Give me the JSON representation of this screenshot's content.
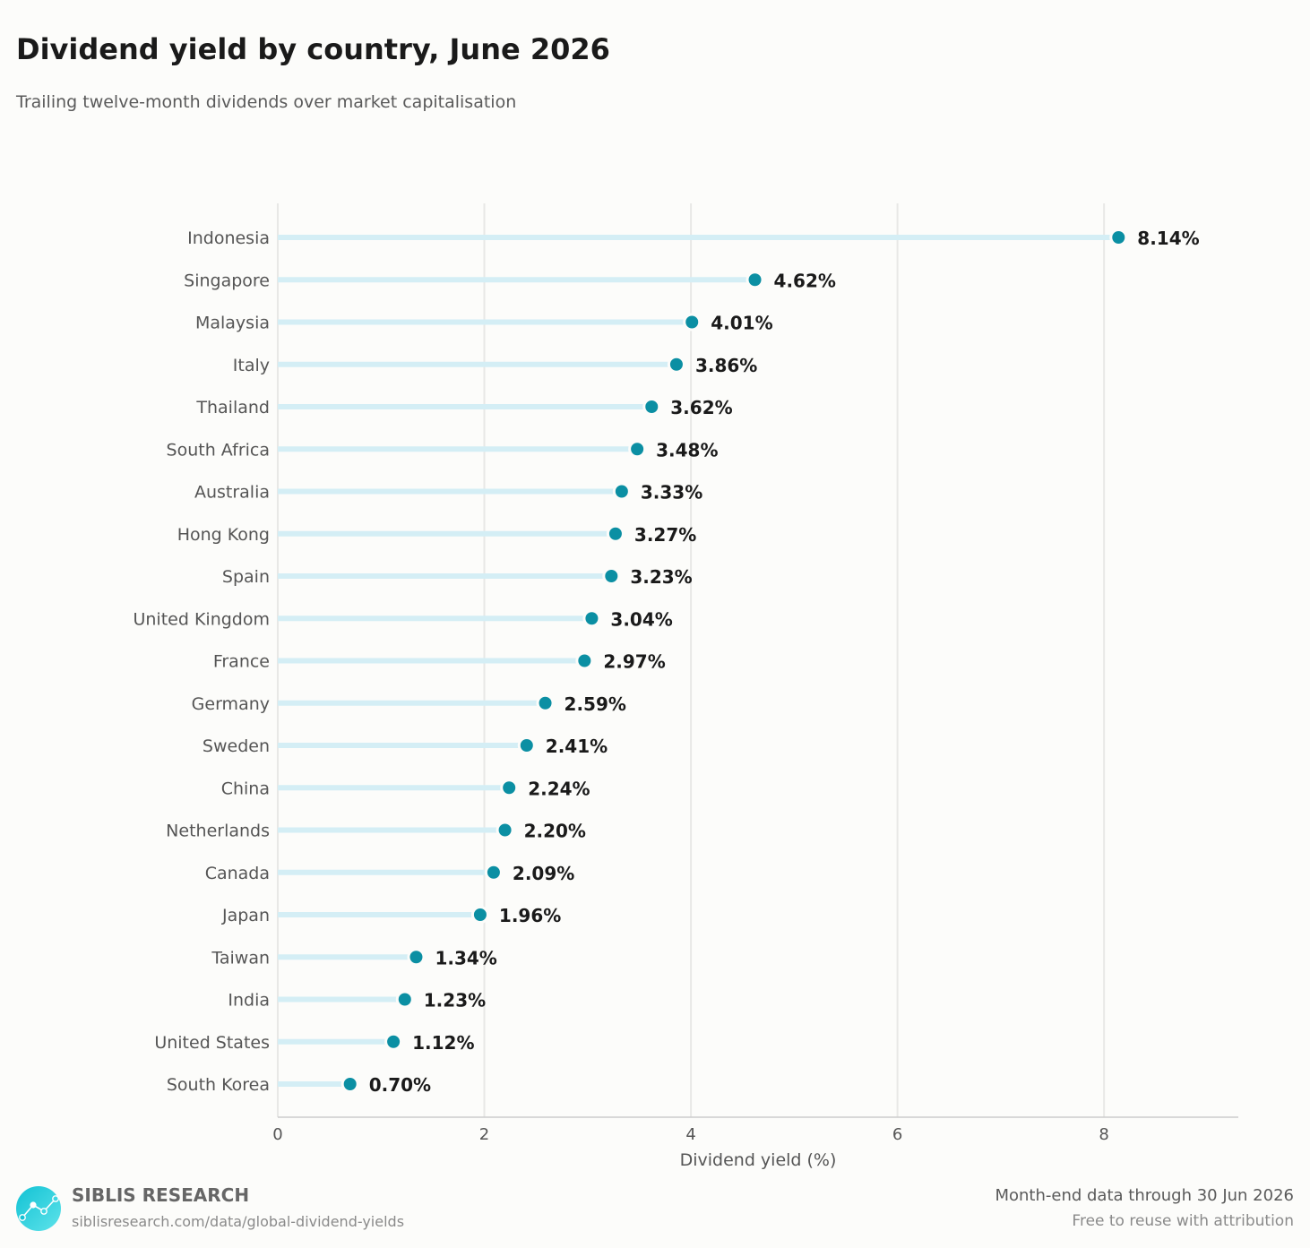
{
  "header": {
    "title": "Dividend yield by country, June 2026",
    "subtitle": "Trailing twelve-month dividends over market capitalisation"
  },
  "chart_data": {
    "type": "lollipop",
    "orientation": "horizontal",
    "title": "Dividend yield by country, June 2026",
    "subtitle": "Trailing twelve-month dividends over market capitalisation",
    "xlabel": "Dividend yield (%)",
    "ylabel": "",
    "xlim": [
      0,
      9.3
    ],
    "xticks": [
      0,
      2,
      4,
      6,
      8
    ],
    "grid": "vertical",
    "value_suffix": "%",
    "categories": [
      "Indonesia",
      "Singapore",
      "Malaysia",
      "Italy",
      "Thailand",
      "South Africa",
      "Australia",
      "Hong Kong",
      "Spain",
      "United Kingdom",
      "France",
      "Germany",
      "Sweden",
      "China",
      "Netherlands",
      "Canada",
      "Japan",
      "Taiwan",
      "India",
      "United States",
      "South Korea"
    ],
    "values": [
      8.14,
      4.62,
      4.01,
      3.86,
      3.62,
      3.48,
      3.33,
      3.27,
      3.23,
      3.04,
      2.97,
      2.59,
      2.41,
      2.24,
      2.2,
      2.09,
      1.96,
      1.34,
      1.23,
      1.12,
      0.7
    ],
    "value_labels": [
      "8.14%",
      "4.62%",
      "4.01%",
      "3.86%",
      "3.62%",
      "3.48%",
      "3.33%",
      "3.27%",
      "3.23%",
      "3.04%",
      "2.97%",
      "2.59%",
      "2.41%",
      "2.24%",
      "2.20%",
      "2.09%",
      "1.96%",
      "1.34%",
      "1.23%",
      "1.12%",
      "0.70%"
    ],
    "colors": {
      "stem": "#d4eef5",
      "dot": "#0b8fa3",
      "grid": "#e8e8e6",
      "axis": "#cccccc"
    }
  },
  "footer": {
    "brand_name": "SIBLIS RESEARCH",
    "brand_url": "siblisresearch.com/data/global-dividend-yields",
    "note_primary": "Month-end data through 30 Jun 2026",
    "note_secondary": "Free to reuse with attribution",
    "logo_icon": "chart-line-logo-icon",
    "logo_color": "#1cc8d8"
  }
}
